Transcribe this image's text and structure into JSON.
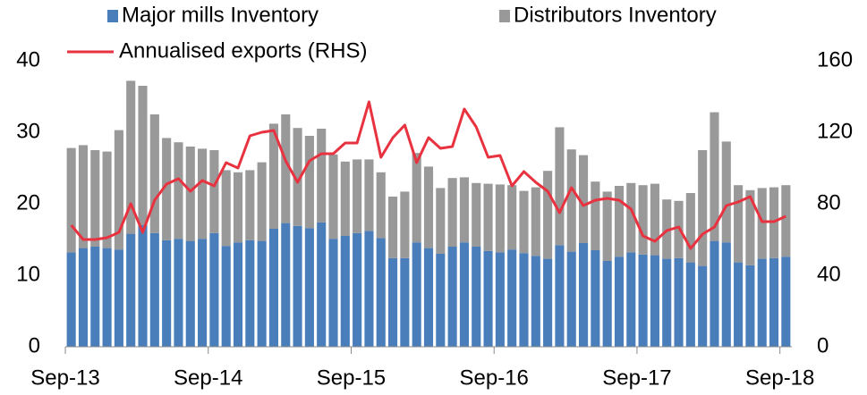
{
  "chart_data": {
    "type": "bar",
    "categories": [
      "Sep-13",
      null,
      null,
      null,
      null,
      null,
      null,
      null,
      null,
      null,
      null,
      null,
      "Sep-14",
      null,
      null,
      null,
      null,
      null,
      null,
      null,
      null,
      null,
      null,
      null,
      "Sep-15",
      null,
      null,
      null,
      null,
      null,
      null,
      null,
      null,
      null,
      null,
      null,
      "Sep-16",
      null,
      null,
      null,
      null,
      null,
      null,
      null,
      null,
      null,
      null,
      null,
      "Sep-17",
      null,
      null,
      null,
      null,
      null,
      null,
      null,
      null,
      null,
      null,
      null,
      "Sep-18"
    ],
    "series": [
      {
        "name": "Major mills Inventory",
        "type": "bar",
        "color": "#4a7ebb",
        "values": [
          13.2,
          13.8,
          14.0,
          13.8,
          13.6,
          15.8,
          17.0,
          15.9,
          14.9,
          15.1,
          14.8,
          15.1,
          15.9,
          14.1,
          14.6,
          14.9,
          14.8,
          16.5,
          17.3,
          16.9,
          16.6,
          17.4,
          15.1,
          15.5,
          15.9,
          16.2,
          15.2,
          12.4,
          12.4,
          14.6,
          13.8,
          13.0,
          14.0,
          14.6,
          14.0,
          13.4,
          13.2,
          13.6,
          13.1,
          12.7,
          12.3,
          14.2,
          13.3,
          14.5,
          13.5,
          12.0,
          12.6,
          13.2,
          12.9,
          12.8,
          12.3,
          12.4,
          11.8,
          11.3,
          14.8,
          14.6,
          11.8,
          11.4,
          12.3,
          12.4,
          12.6
        ]
      },
      {
        "name": "Distributors Inventory",
        "type": "bar",
        "color": "#999999",
        "values": [
          14.6,
          14.4,
          13.5,
          13.5,
          16.7,
          21.4,
          19.5,
          16.6,
          14.3,
          13.5,
          13.2,
          12.6,
          11.6,
          10.6,
          9.8,
          9.8,
          11.0,
          14.7,
          15.2,
          13.7,
          12.9,
          13.1,
          11.8,
          10.4,
          10.3,
          10.0,
          9.2,
          8.6,
          9.3,
          12.5,
          11.4,
          9.2,
          9.6,
          9.1,
          8.9,
          9.4,
          9.5,
          9.0,
          8.7,
          9.6,
          12.3,
          16.5,
          14.3,
          12.3,
          9.6,
          9.7,
          9.9,
          9.7,
          9.7,
          10.0,
          8.3,
          8.0,
          9.7,
          16.2,
          18.0,
          14.1,
          10.8,
          10.5,
          9.9,
          9.9,
          10.0
        ]
      },
      {
        "name": "Annualised exports (RHS)",
        "type": "line",
        "axis": "y2",
        "color": "#e8323f",
        "values": [
          68,
          60,
          60,
          61,
          64,
          80,
          64,
          82,
          91,
          94,
          87,
          93,
          90,
          103,
          100,
          118,
          120,
          121,
          104,
          92,
          104,
          108,
          108,
          114,
          114,
          137,
          106,
          117,
          124,
          103,
          117,
          111,
          112,
          133,
          123,
          106,
          107,
          90,
          98,
          92,
          87,
          75,
          89,
          79,
          82,
          83,
          82,
          77,
          62,
          59,
          65,
          67,
          55,
          63,
          67,
          79,
          81,
          84,
          70,
          70,
          73
        ]
      }
    ],
    "ylim": [
      0,
      40
    ],
    "yticks": [
      0,
      10,
      20,
      30,
      40
    ],
    "y2lim": [
      0,
      160
    ],
    "y2ticks": [
      0,
      40,
      80,
      120,
      160
    ],
    "stacked": true,
    "grid": false
  }
}
